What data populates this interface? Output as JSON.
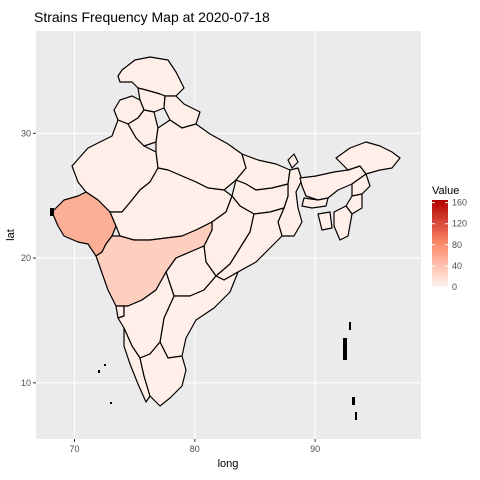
{
  "chart_data": {
    "type": "choropleth",
    "title": "Strains Frequency Map at  2020-07-18",
    "xlabel": "long",
    "ylabel": "lat",
    "xlim": [
      66.8,
      98.8
    ],
    "ylim": [
      5.5,
      38.2
    ],
    "x_ticks": [
      70,
      80,
      90
    ],
    "y_ticks": [
      10,
      20,
      30
    ],
    "grid": true,
    "legend": {
      "title": "Value",
      "position": "right",
      "breaks": [
        0,
        40,
        80,
        120,
        160
      ],
      "range": [
        0,
        165
      ],
      "color_low": "#fff5f0",
      "color_mid": "#fb8a6a",
      "color_high": "#b00000"
    },
    "regions": [
      {
        "name": "Gujarat",
        "value": 55
      },
      {
        "name": "Maharashtra",
        "value": 30
      },
      {
        "name": "Other states",
        "value": 5
      }
    ]
  },
  "colors": {
    "panel_background": "#ebebeb",
    "grid": "#ffffff",
    "border": "#000000"
  }
}
